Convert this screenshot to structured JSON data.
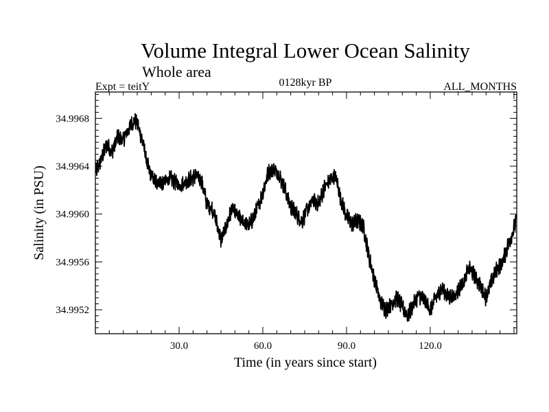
{
  "chart_data": {
    "type": "line",
    "title": "Volume Integral Lower Ocean Salinity",
    "subtitle": "Whole area",
    "left_label": "Expt = teitY",
    "center_label": "0128kyr BP",
    "right_label": "ALL_MONTHS",
    "xlabel": "Time (in years since start)",
    "ylabel": "Salinity (in PSU)",
    "xlim": [
      0,
      151
    ],
    "ylim": [
      34.995,
      34.99702
    ],
    "x_ticks": [
      30.0,
      60.0,
      90.0,
      120.0
    ],
    "x_tick_labels": [
      "30.0",
      "60.0",
      "90.0",
      "120.0"
    ],
    "y_ticks": [
      34.9952,
      34.9956,
      34.996,
      34.9964,
      34.9968
    ],
    "y_tick_labels": [
      "34.9952",
      "34.9956",
      "34.9960",
      "34.9964",
      "34.9968"
    ],
    "line_color": "#000000",
    "series": [
      {
        "name": "salinity",
        "x": [
          0,
          2,
          4,
          6,
          8,
          10,
          12,
          14,
          15,
          17,
          19,
          21,
          24,
          27,
          30,
          33,
          36,
          38,
          40,
          42,
          44,
          45,
          47,
          49,
          51,
          53,
          55,
          57,
          60,
          62,
          64,
          66,
          68,
          70,
          72,
          74,
          76,
          78,
          80,
          82,
          84,
          86,
          88,
          90,
          92,
          94,
          96,
          98,
          100,
          102,
          104,
          106,
          108,
          110,
          112,
          114,
          116,
          118,
          120,
          122,
          124,
          126,
          128,
          130,
          132,
          134,
          136,
          138,
          140,
          142,
          144,
          146,
          148,
          150,
          151
        ],
        "y": [
          34.99635,
          34.99645,
          34.99658,
          34.99652,
          34.99665,
          34.99662,
          34.99672,
          34.99678,
          34.99676,
          34.9966,
          34.99638,
          34.99628,
          34.99626,
          34.9963,
          34.99624,
          34.99628,
          34.99632,
          34.99628,
          34.99608,
          34.99604,
          34.99588,
          34.99578,
          34.9959,
          34.99605,
          34.99598,
          34.99594,
          34.9959,
          34.99598,
          34.99618,
          34.99635,
          34.99638,
          34.99632,
          34.9962,
          34.99606,
          34.996,
          34.99594,
          34.99604,
          34.99612,
          34.99608,
          34.99622,
          34.99628,
          34.99632,
          34.99612,
          34.99598,
          34.99592,
          34.99594,
          34.9959,
          34.99565,
          34.99545,
          34.99528,
          34.9952,
          34.99525,
          34.9953,
          34.99522,
          34.99515,
          34.99525,
          34.99532,
          34.99528,
          34.9952,
          34.9953,
          34.99538,
          34.99532,
          34.9953,
          34.99536,
          34.99544,
          34.99555,
          34.99548,
          34.9954,
          34.9953,
          34.99544,
          34.99555,
          34.9956,
          34.99575,
          34.99588,
          34.99596
        ]
      }
    ]
  }
}
